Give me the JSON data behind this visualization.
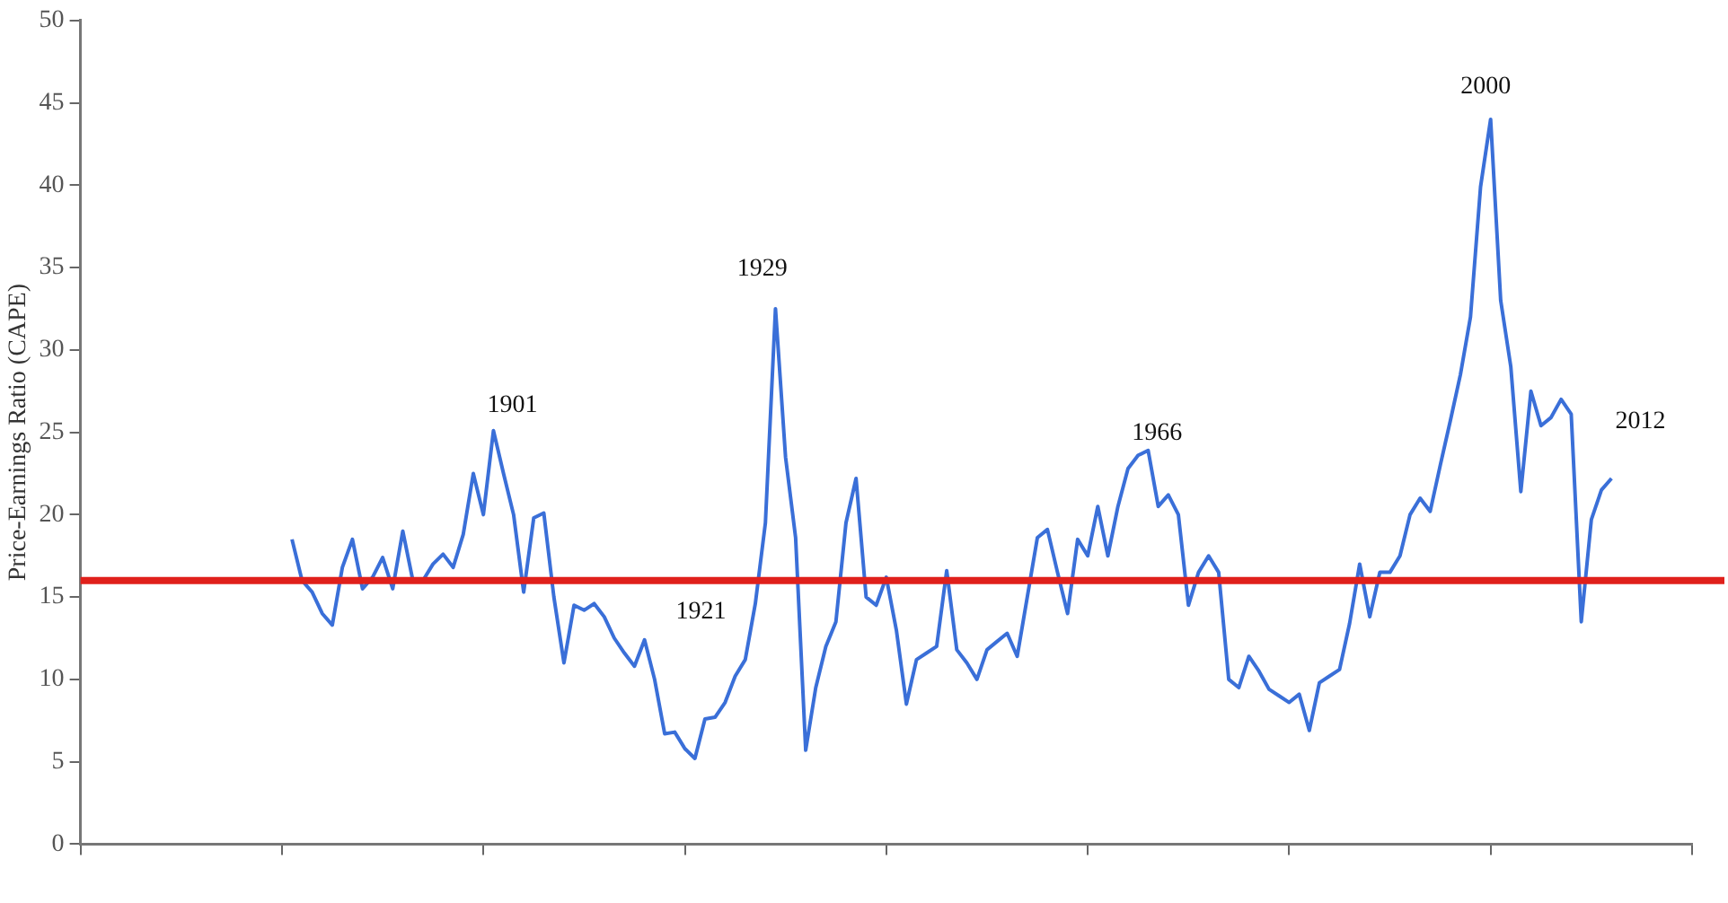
{
  "chart_data": {
    "type": "line",
    "ylabel": "Price-Earnings Ratio (CAPE)",
    "categories": [
      null,
      null,
      null,
      null,
      null,
      null,
      null,
      null,
      null,
      null,
      null,
      null,
      null,
      null,
      null,
      null,
      null,
      null,
      null,
      null,
      null,
      null,
      null,
      null,
      null,
      null,
      null,
      null,
      null,
      null,
      null,
      null,
      null,
      null,
      null,
      null,
      null,
      null,
      null,
      null,
      null,
      null,
      null,
      null,
      null,
      null,
      null,
      null,
      null,
      null,
      null,
      null,
      null,
      null,
      null,
      null,
      null,
      null,
      null,
      null,
      null,
      null,
      null,
      null,
      null,
      null,
      null,
      null,
      null,
      null,
      null,
      null,
      null,
      null,
      null,
      null,
      null,
      null,
      null,
      null,
      null,
      null,
      null,
      null,
      null,
      null,
      null,
      null,
      null,
      null,
      null,
      null,
      null,
      null,
      null,
      null,
      null,
      null,
      null,
      null,
      null,
      null,
      null,
      null,
      null,
      null,
      null,
      null,
      null,
      null,
      null,
      null,
      null,
      null,
      null,
      null,
      null,
      null,
      null,
      null,
      null,
      null,
      null,
      null,
      null,
      null,
      null,
      null,
      null,
      null,
      null,
      null,
      null,
      null,
      null,
      null,
      null,
      null,
      null,
      null,
      null,
      null,
      null,
      null,
      null,
      null,
      null,
      null,
      null,
      null,
      null,
      null,
      null,
      null,
      null,
      null,
      null,
      null,
      null,
      null,
      null
    ],
    "ylim": [
      0,
      50
    ],
    "yticks": [
      0,
      5,
      10,
      15,
      20,
      25,
      30,
      35,
      40,
      45,
      50
    ],
    "series": [
      {
        "color": "#3a6fd8",
        "values": [
          null,
          null,
          null,
          null,
          null,
          null,
          null,
          null,
          null,
          null,
          null,
          null,
          null,
          null,
          null,
          null,
          null,
          null,
          null,
          null,
          null,
          18.5,
          16.0,
          15.3,
          14.0,
          13.3,
          16.8,
          18.5,
          15.5,
          16.2,
          17.4,
          15.5,
          19.0,
          16.0,
          16.0,
          17.0,
          17.6,
          16.8,
          18.8,
          22.5,
          20.0,
          25.1,
          22.5,
          20.0,
          15.3,
          19.8,
          20.1,
          15.0,
          11.0,
          14.5,
          14.2,
          14.6,
          13.8,
          12.5,
          11.6,
          10.8,
          12.4,
          10.0,
          6.7,
          6.8,
          5.8,
          5.2,
          7.6,
          7.7,
          8.6,
          10.2,
          11.2,
          14.6,
          19.5,
          32.5,
          23.5,
          18.6,
          5.7,
          9.5,
          12.0,
          13.5,
          19.5,
          22.2,
          15.0,
          14.5,
          16.2,
          13.0,
          8.5,
          11.2,
          11.6,
          12.0,
          16.6,
          11.8,
          11.0,
          10.0,
          11.8,
          12.3,
          12.8,
          11.4,
          15.0,
          18.6,
          19.1,
          16.5,
          14.0,
          18.5,
          17.5,
          20.5,
          17.5,
          20.5,
          22.8,
          23.6,
          23.9,
          20.5,
          21.2,
          20.0,
          14.5,
          16.5,
          17.5,
          16.5,
          10.0,
          9.5,
          11.4,
          10.5,
          9.4,
          9.0,
          8.6,
          9.1,
          6.9,
          9.8,
          10.2,
          10.6,
          13.4,
          17.0,
          13.8,
          16.5,
          16.5,
          17.5,
          20.0,
          21.0,
          20.2,
          23.0,
          25.7,
          28.5,
          32.0,
          39.9,
          44.0,
          33.0,
          29.0,
          21.4,
          27.5,
          25.4,
          25.9,
          27.0,
          26.1,
          13.5,
          19.7,
          21.5,
          22.2,
          null,
          null,
          null,
          null,
          null,
          null,
          null,
          null
        ]
      }
    ],
    "ref_lines": [
      {
        "axis": "y",
        "value": 16,
        "color": "#e0201b"
      }
    ],
    "annotations": [
      "1901",
      "1921",
      "1929",
      "1966",
      "2000",
      "2012"
    ]
  }
}
